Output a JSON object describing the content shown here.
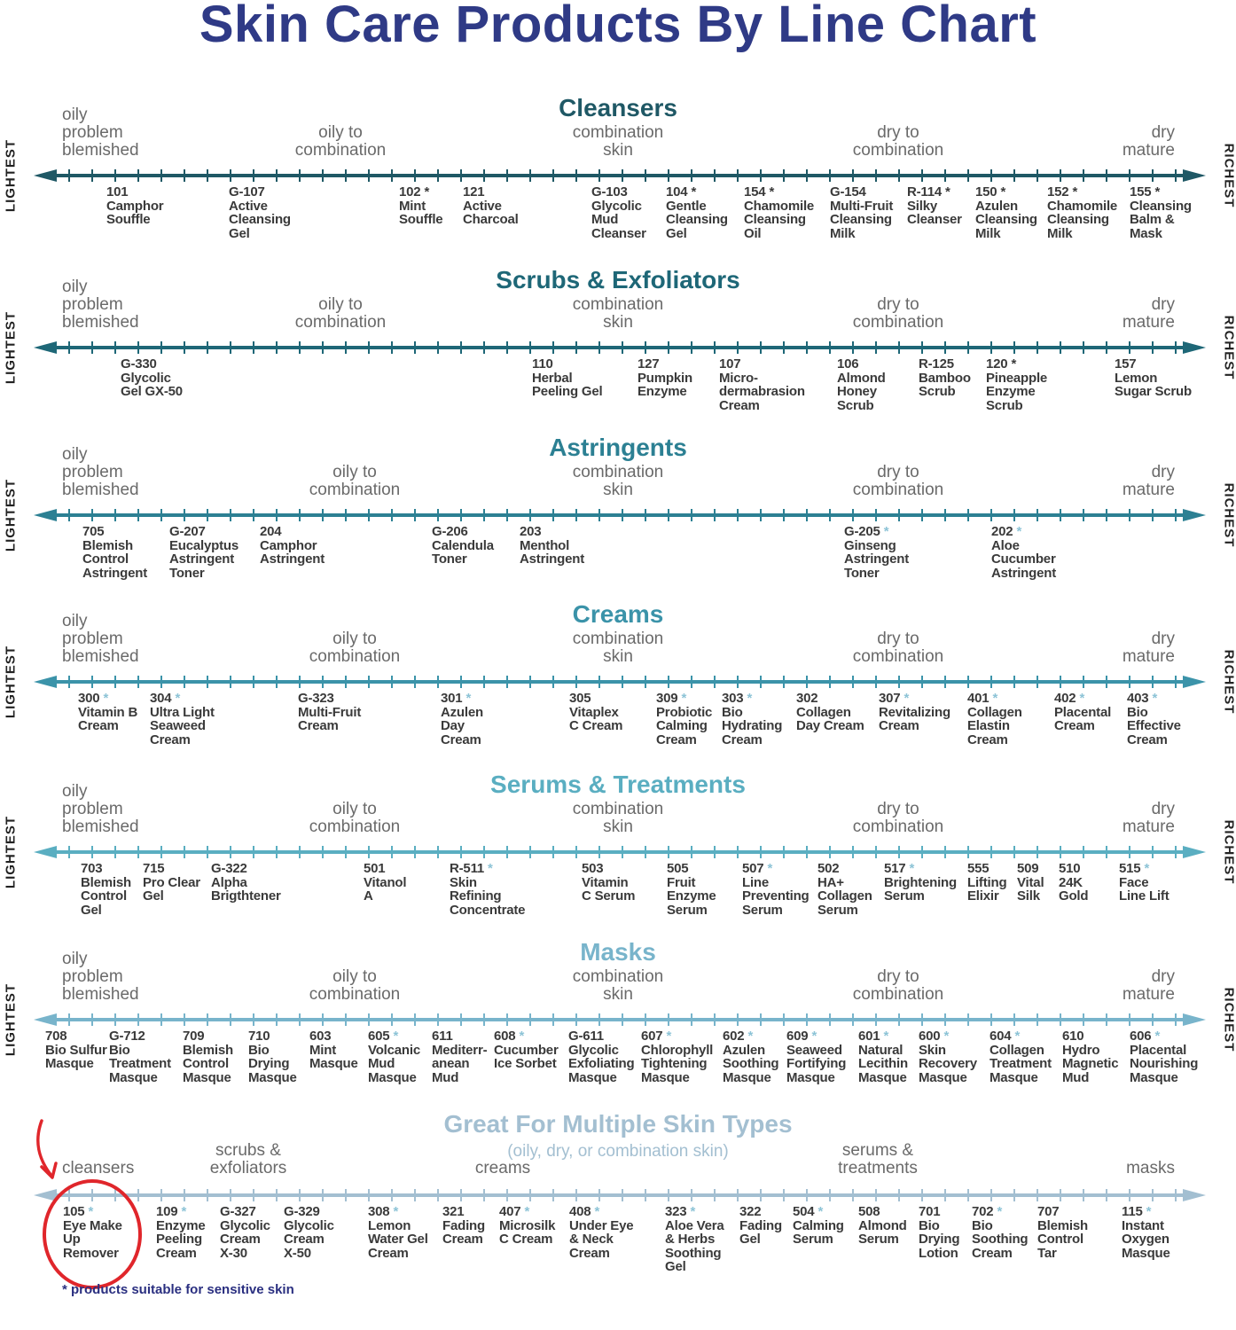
{
  "title": "Skin Care Products By Line Chart",
  "side_labels": {
    "left": "LIGHTEST",
    "right": "RICHEST"
  },
  "standard_labels": {
    "oily": "oily\nproblem\nblemished",
    "oily_combo": "oily to\ncombination",
    "combo": "combination\nskin",
    "dry_combo": "dry to\ncombination",
    "dry": "dry\nmature"
  },
  "colors": {
    "title": "#2f3a86",
    "sensitive_marker": "#8cc3d6",
    "highlight_circle": "#e0262b"
  },
  "sections": [
    {
      "title": "Cleansers",
      "color": "#1f5865",
      "items": [
        {
          "code": "101",
          "name": "Camphor\nSouffle",
          "sensitive": false
        },
        {
          "code": "G-107",
          "name": "Active\nCleansing\nGel",
          "sensitive": false
        },
        {
          "code": "102",
          "name": "Mint\nSouffle",
          "sensitive": true
        },
        {
          "code": "121",
          "name": "Active\nCharcoal",
          "sensitive": false
        },
        {
          "code": "G-103",
          "name": "Glycolic\nMud\nCleanser",
          "sensitive": false
        },
        {
          "code": "104",
          "name": "Gentle\nCleansing\nGel",
          "sensitive": true
        },
        {
          "code": "154",
          "name": "Chamomile\nCleansing\nOil",
          "sensitive": true
        },
        {
          "code": "G-154",
          "name": "Multi-Fruit\nCleansing\nMilk",
          "sensitive": false
        },
        {
          "code": "R-114",
          "name": "Silky\nCleanser",
          "sensitive": true
        },
        {
          "code": "150",
          "name": "Azulen\nCleansing\nMilk",
          "sensitive": true
        },
        {
          "code": "152",
          "name": "Chamomile\nCleansing\nMilk",
          "sensitive": true
        },
        {
          "code": "155",
          "name": "Cleansing\nBalm &\nMask",
          "sensitive": true
        }
      ]
    },
    {
      "title": "Scrubs & Exfoliators",
      "color": "#1e6777",
      "items": [
        {
          "code": "G-330",
          "name": "Glycolic\nGel GX-50",
          "sensitive": false
        },
        {
          "code": "110",
          "name": "Herbal\nPeeling Gel",
          "sensitive": false
        },
        {
          "code": "127",
          "name": "Pumpkin\nEnzyme",
          "sensitive": false
        },
        {
          "code": "107",
          "name": "Micro-\ndermabrasion\nCream",
          "sensitive": false
        },
        {
          "code": "106",
          "name": "Almond\nHoney\nScrub",
          "sensitive": false
        },
        {
          "code": "R-125",
          "name": "Bamboo\nScrub",
          "sensitive": false
        },
        {
          "code": "120",
          "name": "Pineapple\nEnzyme\nScrub",
          "sensitive": true
        },
        {
          "code": "157",
          "name": "Lemon\nSugar Scrub",
          "sensitive": false
        }
      ]
    },
    {
      "title": "Astringents",
      "color": "#2c8093",
      "items": [
        {
          "code": "705",
          "name": "Blemish\nControl\nAstringent",
          "sensitive": false
        },
        {
          "code": "G-207",
          "name": "Eucalyptus\nAstringent\nToner",
          "sensitive": false
        },
        {
          "code": "204",
          "name": "Camphor\nAstringent",
          "sensitive": false
        },
        {
          "code": "G-206",
          "name": "Calendula\nToner",
          "sensitive": false
        },
        {
          "code": "203",
          "name": "Menthol\nAstringent",
          "sensitive": false
        },
        {
          "code": "G-205",
          "name": "Ginseng\nAstringent\nToner",
          "sensitive": true
        },
        {
          "code": "202",
          "name": "Aloe\nCucumber\nAstringent",
          "sensitive": true
        }
      ]
    },
    {
      "title": "Creams",
      "color": "#3b93a9",
      "items": [
        {
          "code": "300",
          "name": "Vitamin B\nCream",
          "sensitive": true
        },
        {
          "code": "304",
          "name": "Ultra Light\nSeaweed\nCream",
          "sensitive": true
        },
        {
          "code": "G-323",
          "name": "Multi-Fruit\nCream",
          "sensitive": false
        },
        {
          "code": "301",
          "name": "Azulen\nDay\nCream",
          "sensitive": true
        },
        {
          "code": "305",
          "name": "Vitaplex\nC Cream",
          "sensitive": false
        },
        {
          "code": "309",
          "name": "Probiotic\nCalming\nCream",
          "sensitive": true
        },
        {
          "code": "303",
          "name": "Bio\nHydrating\nCream",
          "sensitive": true
        },
        {
          "code": "302",
          "name": "Collagen\nDay Cream",
          "sensitive": false
        },
        {
          "code": "307",
          "name": "Revitalizing\nCream",
          "sensitive": true
        },
        {
          "code": "401",
          "name": "Collagen\nElastin\nCream",
          "sensitive": true
        },
        {
          "code": "402",
          "name": "Placental\nCream",
          "sensitive": true
        },
        {
          "code": "403",
          "name": "Bio\nEffective\nCream",
          "sensitive": true
        }
      ]
    },
    {
      "title": "Serums & Treatments",
      "color": "#5aaec1",
      "items": [
        {
          "code": "703",
          "name": "Blemish\nControl\nGel",
          "sensitive": false
        },
        {
          "code": "715",
          "name": "Pro Clear\nGel",
          "sensitive": false
        },
        {
          "code": "G-322",
          "name": "Alpha\nBrigthtener",
          "sensitive": false
        },
        {
          "code": "501",
          "name": "Vitanol\nA",
          "sensitive": false
        },
        {
          "code": "R-511",
          "name": "Skin\nRefining\nConcentrate",
          "sensitive": true
        },
        {
          "code": "503",
          "name": "Vitamin\nC Serum",
          "sensitive": false
        },
        {
          "code": "505",
          "name": "Fruit\nEnzyme\nSerum",
          "sensitive": false
        },
        {
          "code": "507",
          "name": "Line\nPreventing\nSerum",
          "sensitive": true
        },
        {
          "code": "502",
          "name": "HA+\nCollagen\nSerum",
          "sensitive": false
        },
        {
          "code": "517",
          "name": "Brightening\nSerum",
          "sensitive": true
        },
        {
          "code": "555",
          "name": "Lifting\nElixir",
          "sensitive": false
        },
        {
          "code": "509",
          "name": "Vital\nSilk",
          "sensitive": false
        },
        {
          "code": "510",
          "name": "24K\nGold",
          "sensitive": false
        },
        {
          "code": "515",
          "name": "Face\nLine Lift",
          "sensitive": true
        }
      ]
    },
    {
      "title": "Masks",
      "color": "#78b4cb",
      "items": [
        {
          "code": "708",
          "name": "Bio Sulfur\nMasque",
          "sensitive": false
        },
        {
          "code": "G-712",
          "name": "Bio\nTreatment\nMasque",
          "sensitive": false
        },
        {
          "code": "709",
          "name": "Blemish\nControl\nMasque",
          "sensitive": false
        },
        {
          "code": "710",
          "name": "Bio\nDrying\nMasque",
          "sensitive": false
        },
        {
          "code": "603",
          "name": "Mint\nMasque",
          "sensitive": false
        },
        {
          "code": "605",
          "name": "Volcanic\nMud\nMasque",
          "sensitive": true
        },
        {
          "code": "611",
          "name": "Mediterr-\nanean\nMud",
          "sensitive": false
        },
        {
          "code": "608",
          "name": "Cucumber\nIce Sorbet",
          "sensitive": true
        },
        {
          "code": "G-611",
          "name": "Glycolic\nExfoliating\nMasque",
          "sensitive": false
        },
        {
          "code": "607",
          "name": "Chlorophyll\nTightening\nMasque",
          "sensitive": true
        },
        {
          "code": "602",
          "name": "Azulen\nSoothing\nMasque",
          "sensitive": true
        },
        {
          "code": "609",
          "name": "Seaweed\nFortifying\nMasque",
          "sensitive": true
        },
        {
          "code": "601",
          "name": "Natural\nLecithin\nMasque",
          "sensitive": true
        },
        {
          "code": "600",
          "name": "Skin\nRecovery\nMasque",
          "sensitive": true
        },
        {
          "code": "604",
          "name": "Collagen\nTreatment\nMasque",
          "sensitive": true
        },
        {
          "code": "610",
          "name": "Hydro\nMagnetic\nMud",
          "sensitive": false
        },
        {
          "code": "606",
          "name": "Placental\nNourishing\nMasque",
          "sensitive": true
        }
      ]
    }
  ],
  "multi": {
    "title": "Great For Multiple Skin Types",
    "subtitle": "(oily, dry, or combination skin)",
    "color": "#a3bfd1",
    "labels": {
      "cleansers": "cleansers",
      "scrubs": "scrubs &\nexfoliators",
      "creams": "creams",
      "serums": "serums &\ntreatments",
      "masks": "masks"
    },
    "items": [
      {
        "code": "105",
        "name": "Eye Make\nUp\nRemover",
        "sensitive": true
      },
      {
        "code": "109",
        "name": "Enzyme\nPeeling\nCream",
        "sensitive": true
      },
      {
        "code": "G-327",
        "name": "Glycolic\nCream\nX-30",
        "sensitive": false
      },
      {
        "code": "G-329",
        "name": "Glycolic\nCream\nX-50",
        "sensitive": false
      },
      {
        "code": "308",
        "name": "Lemon\nWater Gel\nCream",
        "sensitive": true
      },
      {
        "code": "321",
        "name": "Fading\nCream",
        "sensitive": false
      },
      {
        "code": "407",
        "name": "Microsilk\nC Cream",
        "sensitive": true
      },
      {
        "code": "408",
        "name": "Under Eye\n& Neck\nCream",
        "sensitive": true
      },
      {
        "code": "323",
        "name": "Aloe Vera\n& Herbs\nSoothing\nGel",
        "sensitive": true
      },
      {
        "code": "322",
        "name": "Fading\nGel",
        "sensitive": false
      },
      {
        "code": "504",
        "name": "Calming\nSerum",
        "sensitive": true
      },
      {
        "code": "508",
        "name": "Almond\nSerum",
        "sensitive": false
      },
      {
        "code": "701",
        "name": "Bio\nDrying\nLotion",
        "sensitive": false
      },
      {
        "code": "702",
        "name": "Bio\nSoothing\nCream",
        "sensitive": true
      },
      {
        "code": "707",
        "name": "Blemish\nControl\nTar",
        "sensitive": false
      },
      {
        "code": "115",
        "name": "Instant\nOxygen\nMasque",
        "sensitive": true
      }
    ]
  },
  "footnote": "* products suitable for sensitive skin"
}
